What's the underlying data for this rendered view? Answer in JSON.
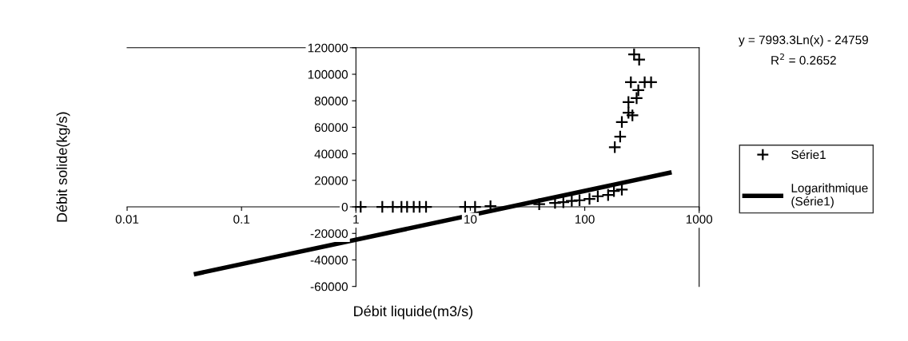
{
  "chart_data": {
    "type": "scatter",
    "xlabel": "Débit liquide(m3/s)",
    "ylabel": "Débit solide(kg/s)",
    "log": "x",
    "xlim": [
      0.01,
      1000
    ],
    "xticks": [
      0.01,
      0.1,
      1,
      10,
      100,
      1000
    ],
    "ylim": [
      -60000,
      120000
    ],
    "yticks": [
      -60000,
      -40000,
      -20000,
      0,
      20000,
      40000,
      60000,
      80000,
      100000,
      120000
    ],
    "grid": false,
    "legend": "right",
    "annotations": [
      "y = 7993.3Ln(x) - 24759",
      "R$^{2}$ = 0.2652"
    ],
    "series": [
      {
        "name": "Série1",
        "type": "scatter",
        "marker": "cross",
        "color": "#000000",
        "x": [
          1.1,
          1.7,
          2.1,
          2.5,
          2.8,
          3.2,
          3.6,
          4.1,
          9,
          11,
          15,
          40,
          55,
          65,
          77,
          90,
          110,
          130,
          160,
          180,
          183,
          204,
          211,
          241,
          253,
          261,
          270,
          284,
          294,
          299,
          334,
          380,
          241,
          211
        ],
        "values": [
          0,
          0,
          0,
          0,
          0,
          0,
          0,
          0,
          0,
          0,
          500,
          2000,
          3000,
          3500,
          4500,
          5000,
          6000,
          8000,
          9000,
          12000,
          45000,
          53000,
          64000,
          79000,
          94000,
          69000,
          115000,
          82000,
          88000,
          111000,
          94000,
          94000,
          71000,
          13000
        ]
      },
      {
        "name": "Logarithmique (Série1)",
        "type": "line",
        "color": "#000000",
        "line_style": "solid",
        "x": [
          0.04,
          550
        ],
        "values": [
          -50500,
          25700
        ]
      }
    ]
  }
}
